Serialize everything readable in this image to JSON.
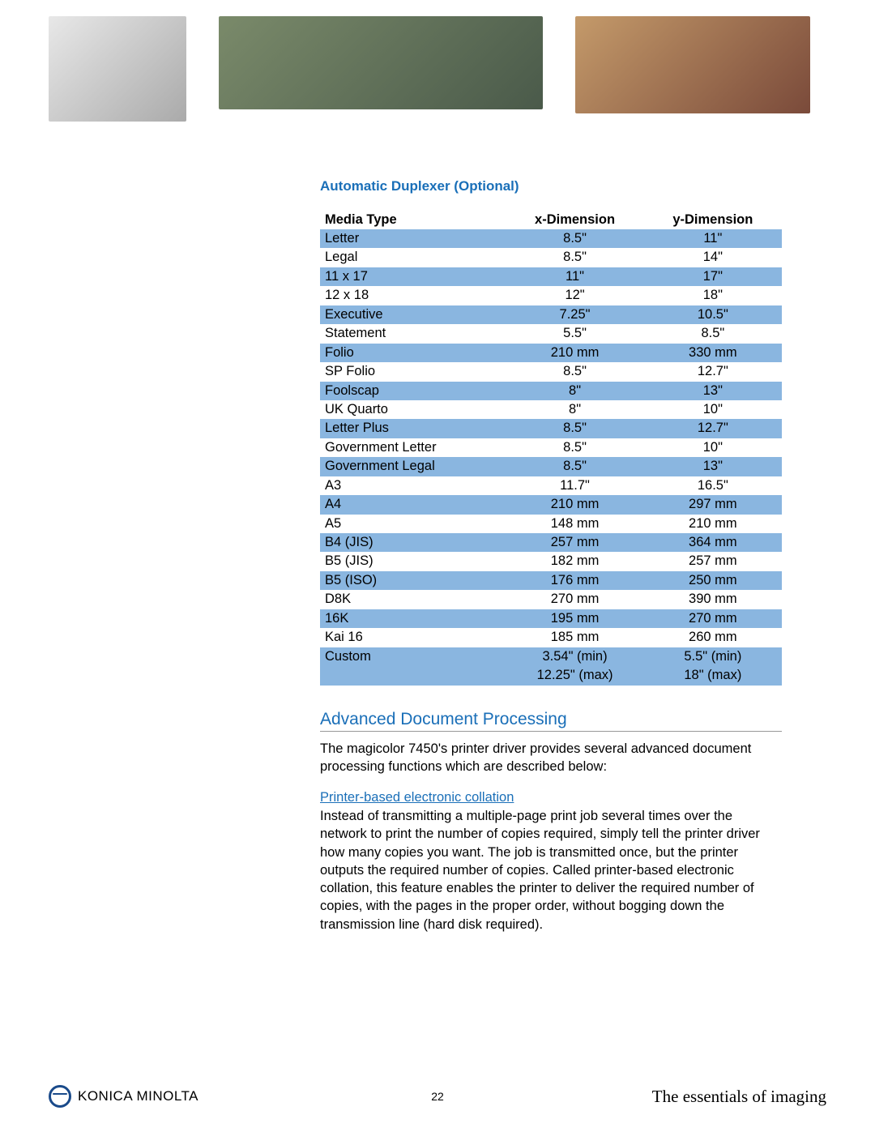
{
  "section_title": "Automatic Duplexer (Optional)",
  "table": {
    "headers": [
      "Media Type",
      "x-Dimension",
      "y-Dimension"
    ],
    "rows": [
      {
        "cells": [
          "Letter",
          "8.5\"",
          "11\""
        ],
        "shaded": true
      },
      {
        "cells": [
          "Legal",
          "8.5\"",
          "14\""
        ],
        "shaded": false
      },
      {
        "cells": [
          "11 x 17",
          "11\"",
          "17\""
        ],
        "shaded": true
      },
      {
        "cells": [
          "12 x 18",
          "12\"",
          "18\""
        ],
        "shaded": false
      },
      {
        "cells": [
          "Executive",
          "7.25\"",
          "10.5\""
        ],
        "shaded": true
      },
      {
        "cells": [
          "Statement",
          "5.5\"",
          "8.5\""
        ],
        "shaded": false
      },
      {
        "cells": [
          "Folio",
          "210 mm",
          "330 mm"
        ],
        "shaded": true
      },
      {
        "cells": [
          "SP Folio",
          "8.5\"",
          "12.7\""
        ],
        "shaded": false
      },
      {
        "cells": [
          "Foolscap",
          "8\"",
          "13\""
        ],
        "shaded": true
      },
      {
        "cells": [
          "UK Quarto",
          "8\"",
          "10\""
        ],
        "shaded": false
      },
      {
        "cells": [
          "Letter Plus",
          "8.5\"",
          "12.7\""
        ],
        "shaded": true
      },
      {
        "cells": [
          "Government Letter",
          "8.5\"",
          "10\""
        ],
        "shaded": false
      },
      {
        "cells": [
          "Government Legal",
          "8.5\"",
          "13\""
        ],
        "shaded": true
      },
      {
        "cells": [
          "A3",
          "11.7\"",
          "16.5\""
        ],
        "shaded": false
      },
      {
        "cells": [
          "A4",
          "210 mm",
          "297 mm"
        ],
        "shaded": true
      },
      {
        "cells": [
          "A5",
          "148 mm",
          "210 mm"
        ],
        "shaded": false
      },
      {
        "cells": [
          "B4 (JIS)",
          "257 mm",
          "364 mm"
        ],
        "shaded": true
      },
      {
        "cells": [
          "B5 (JIS)",
          "182 mm",
          "257 mm"
        ],
        "shaded": false
      },
      {
        "cells": [
          "B5 (ISO)",
          "176 mm",
          "250 mm"
        ],
        "shaded": true
      },
      {
        "cells": [
          "D8K",
          "270 mm",
          "390 mm"
        ],
        "shaded": false
      },
      {
        "cells": [
          "16K",
          "195 mm",
          "270 mm"
        ],
        "shaded": true
      },
      {
        "cells": [
          "Kai 16",
          "185 mm",
          "260 mm"
        ],
        "shaded": false
      },
      {
        "cells": [
          "Custom",
          "3.54\" (min)",
          "5.5\" (min)"
        ],
        "shaded": true
      },
      {
        "cells": [
          "",
          "12.25\" (max)",
          "18\" (max)"
        ],
        "shaded": true
      }
    ],
    "shaded_color": "#8ab6e0"
  },
  "heading2": "Advanced Document Processing",
  "intro_paragraph": "The magicolor 7450's printer driver provides several advanced document processing functions which are described below:",
  "sub_heading": "Printer-based electronic collation",
  "sub_paragraph": "Instead of transmitting a multiple-page print job several times over the network to print the number of copies required, simply tell the printer driver how many copies you want. The job is transmitted once, but the printer outputs the required number of copies. Called printer-based electronic collation, this feature enables the printer to deliver the required number of copies, with the pages in the proper order, without bogging down the transmission line (hard disk required).",
  "footer": {
    "brand": "KONICA MINOLTA",
    "page_number": "22",
    "tagline": "The essentials of imaging"
  },
  "colors": {
    "heading_blue": "#1a6fb8",
    "row_shade": "#8ab6e0",
    "text": "#000000"
  }
}
